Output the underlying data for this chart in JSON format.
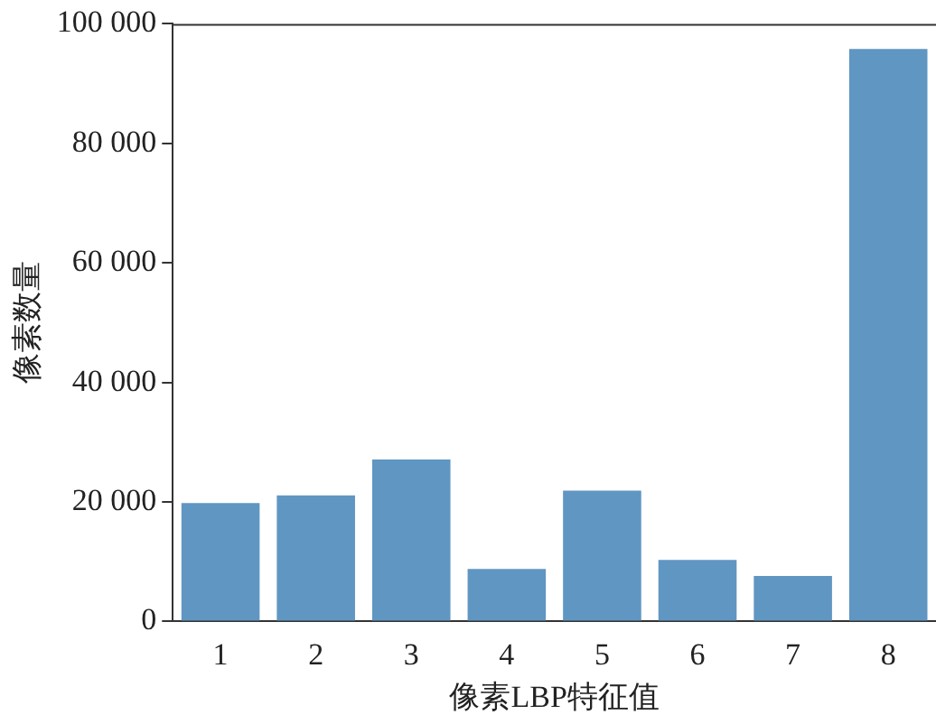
{
  "chart_data": {
    "type": "bar",
    "xlabel": "像素LBP特征值",
    "ylabel": "像素数量",
    "categories": [
      "1",
      "2",
      "3",
      "4",
      "5",
      "6",
      "7",
      "8"
    ],
    "values": [
      19800,
      21100,
      27100,
      8800,
      21900,
      10300,
      7600,
      95800
    ],
    "color": "#6096c2",
    "ylim": [
      0,
      100000
    ],
    "yticks": [
      {
        "value": 0,
        "label": "0"
      },
      {
        "value": 20000,
        "label": "20 000"
      },
      {
        "value": 40000,
        "label": "40 000"
      },
      {
        "value": 60000,
        "label": "60 000"
      },
      {
        "value": 80000,
        "label": "80 000"
      },
      {
        "value": 100000,
        "label": "100 000"
      }
    ],
    "grid": false,
    "legend": false
  }
}
